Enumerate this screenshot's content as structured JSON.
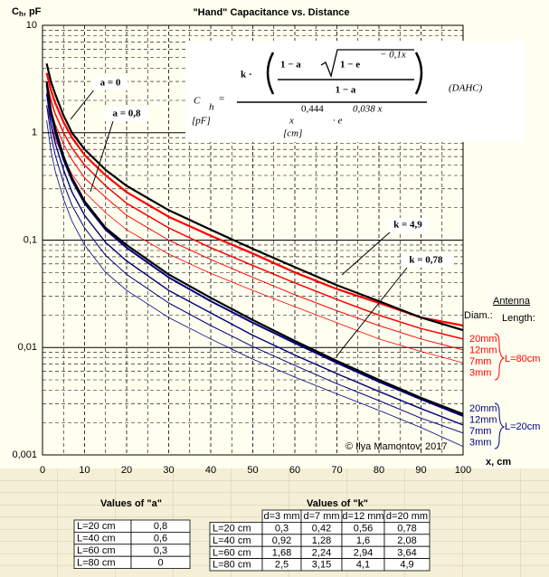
{
  "chart_data": {
    "type": "line",
    "title": "\"Hand\" Capacitance  vs.  Distance",
    "y_label": {
      "main": "C",
      "sub": "h",
      "rest": ", pF"
    },
    "x_label": "x, cm",
    "log_y": true,
    "grid": true,
    "minor_grid": true,
    "xlim": [
      0,
      100
    ],
    "xticks": [
      0,
      10,
      20,
      30,
      40,
      50,
      60,
      70,
      80,
      90,
      100
    ],
    "ylim": [
      0.001,
      10
    ],
    "yticks": [
      {
        "value": 0.001,
        "label": "0,001"
      },
      {
        "value": 0.01,
        "label": "0,01"
      },
      {
        "value": 0.1,
        "label": "0,1"
      },
      1,
      10
    ],
    "x": [
      1,
      2,
      3,
      5,
      7,
      10,
      15,
      20,
      30,
      40,
      50,
      60,
      70,
      80,
      90,
      100
    ],
    "series": [
      {
        "color": "#ff0000",
        "width": 2.2,
        "name": "20mm",
        "values": [
          3.6,
          2.5,
          1.9,
          1.25,
          0.9,
          0.62,
          0.4,
          0.28,
          0.165,
          0.11,
          0.075,
          0.05,
          0.035,
          0.026,
          0.019,
          0.016
        ]
      },
      {
        "color": "#ff0000",
        "width": 1.5,
        "name": "12mm",
        "values": [
          3.0,
          2.0,
          1.5,
          1.0,
          0.72,
          0.5,
          0.32,
          0.22,
          0.13,
          0.085,
          0.058,
          0.04,
          0.028,
          0.02,
          0.015,
          0.012
        ]
      },
      {
        "color": "#ff0000",
        "width": 1,
        "name": "7mm",
        "values": [
          2.4,
          1.6,
          1.2,
          0.78,
          0.56,
          0.38,
          0.25,
          0.17,
          0.1,
          0.066,
          0.045,
          0.031,
          0.022,
          0.016,
          0.012,
          0.0095
        ]
      },
      {
        "color": "#ff0000",
        "width": 0.8,
        "name": "3mm",
        "values": [
          1.8,
          1.2,
          0.88,
          0.58,
          0.41,
          0.28,
          0.18,
          0.125,
          0.074,
          0.049,
          0.034,
          0.024,
          0.017,
          0.012,
          0.0092,
          0.0072
        ]
      },
      {
        "color": "#000080",
        "width": 2,
        "name": "20mm",
        "values": [
          2.8,
          1.5,
          1.0,
          0.56,
          0.36,
          0.22,
          0.125,
          0.085,
          0.045,
          0.027,
          0.017,
          0.011,
          0.0072,
          0.0048,
          0.0033,
          0.0023
        ]
      },
      {
        "color": "#000080",
        "width": 1.4,
        "name": "12mm",
        "values": [
          2.3,
          1.2,
          0.8,
          0.45,
          0.28,
          0.17,
          0.095,
          0.064,
          0.034,
          0.021,
          0.013,
          0.0085,
          0.0057,
          0.0039,
          0.0027,
          0.0019
        ]
      },
      {
        "color": "#000080",
        "width": 1,
        "name": "7mm",
        "values": [
          1.8,
          0.95,
          0.62,
          0.34,
          0.21,
          0.13,
          0.072,
          0.048,
          0.026,
          0.016,
          0.0102,
          0.0068,
          0.0046,
          0.0032,
          0.0022,
          0.0016
        ]
      },
      {
        "color": "#000080",
        "width": 0.8,
        "name": "3mm",
        "values": [
          1.3,
          0.68,
          0.44,
          0.24,
          0.15,
          0.09,
          0.05,
          0.034,
          0.019,
          0.012,
          0.0078,
          0.0053,
          0.0037,
          0.0026,
          0.0018,
          0.0012
        ]
      },
      {
        "color": "#000000",
        "width": 2.2,
        "values": [
          4.4,
          3.0,
          2.3,
          1.44,
          1.0,
          0.7,
          0.45,
          0.32,
          0.19,
          0.125,
          0.083,
          0.056,
          0.038,
          0.027,
          0.019,
          0.0145
        ]
      },
      {
        "color": "#000000",
        "width": 2.2,
        "values": [
          3.0,
          1.6,
          1.1,
          0.6,
          0.38,
          0.23,
          0.13,
          0.09,
          0.048,
          0.029,
          0.018,
          0.0115,
          0.0075,
          0.005,
          0.0034,
          0.0024
        ]
      }
    ],
    "legend": {
      "title": "Antenna",
      "diam": "Diam.:",
      "length": "Length:",
      "groups": [
        "L=80cm",
        "L=20cm"
      ]
    },
    "annotations": [
      "a = 0",
      "a = 0,8",
      "k = 4,9",
      "k = 0,78"
    ],
    "copyright": "© Ilya Mamontov, 2017"
  },
  "formula": {
    "lhs": "C",
    "lhs_sub": "h",
    "lhs_unit": "[pF]",
    "eq": "=",
    "k": "k ·",
    "num_a": "1 − a",
    "exp_base": "1 − e",
    "exp": "− 0,1x",
    "den_a": "1 − a",
    "x": "x",
    "x_exp": "0,444",
    "x_unit": "[cm]",
    "e": "· e",
    "e_exp": "0,038 x",
    "name": "(DAHC)"
  },
  "tables": [
    {
      "title": "Values of  \"a\"",
      "rows": [
        [
          "L=20 cm",
          "0,8"
        ],
        [
          "L=40 cm",
          "0,6"
        ],
        [
          "L=60 cm",
          "0,3"
        ],
        [
          "L=80 cm",
          "0"
        ]
      ]
    },
    {
      "title": "Values of  \"k\"",
      "header": [
        "d=3 mm",
        "d=7 mm",
        "d=12 mm",
        "d=20 mm"
      ],
      "rows": [
        [
          "L=20 cm",
          "0,3",
          "0,42",
          "0,56",
          "0,78"
        ],
        [
          "L=40 cm",
          "0,92",
          "1,28",
          "1,6",
          "2,08"
        ],
        [
          "L=60 cm",
          "1,68",
          "2,24",
          "2,94",
          "3,64"
        ],
        [
          "L=80 cm",
          "2,5",
          "3,15",
          "4,1",
          "4,9"
        ]
      ]
    }
  ]
}
